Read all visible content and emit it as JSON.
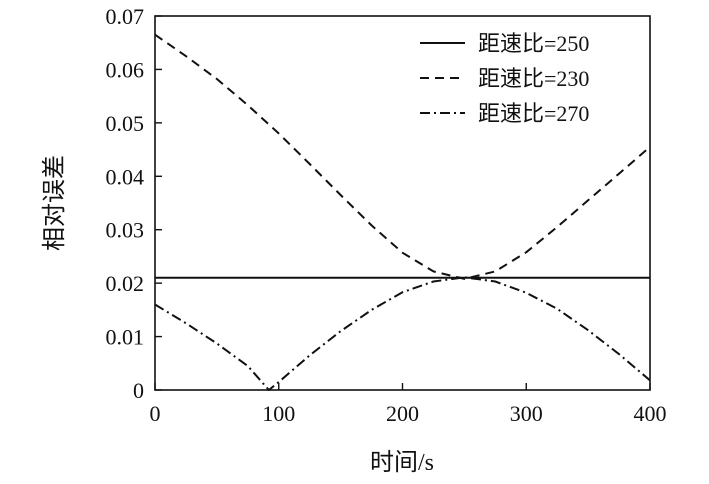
{
  "chart_data": {
    "type": "line",
    "xlabel": "时间/s",
    "ylabel": "相对误差",
    "xlim": [
      0,
      400
    ],
    "ylim": [
      0,
      0.07
    ],
    "xticks": [
      "0",
      "100",
      "200",
      "300",
      "400"
    ],
    "yticks": [
      "0",
      "0.01",
      "0.02",
      "0.03",
      "0.04",
      "0.05",
      "0.06",
      "0.07"
    ],
    "grid": false,
    "legend_position": "top-right",
    "colors": {
      "line": "#111111",
      "axis": "#111111",
      "background": "#ffffff"
    },
    "series": [
      {
        "name": "距速比=250",
        "style": "solid",
        "x": [
          0,
          400
        ],
        "y": [
          0.021,
          0.021
        ]
      },
      {
        "name": "距速比=230",
        "style": "dashed",
        "x": [
          0,
          25,
          50,
          75,
          100,
          125,
          150,
          175,
          200,
          225,
          250,
          275,
          300,
          325,
          350,
          375,
          400
        ],
        "y": [
          0.0665,
          0.0625,
          0.0582,
          0.0533,
          0.048,
          0.0423,
          0.0365,
          0.0308,
          0.0257,
          0.0222,
          0.0208,
          0.0222,
          0.0258,
          0.0305,
          0.0355,
          0.0405,
          0.0455
        ]
      },
      {
        "name": "距速比=270",
        "style": "dashdot",
        "x": [
          0,
          25,
          50,
          75,
          92,
          100,
          125,
          150,
          175,
          200,
          225,
          250,
          275,
          300,
          325,
          350,
          375,
          400
        ],
        "y": [
          0.016,
          0.0125,
          0.0087,
          0.0045,
          0.0,
          0.0015,
          0.0065,
          0.011,
          0.015,
          0.0183,
          0.0203,
          0.0211,
          0.0203,
          0.0182,
          0.0152,
          0.0112,
          0.0067,
          0.0018
        ]
      }
    ]
  }
}
